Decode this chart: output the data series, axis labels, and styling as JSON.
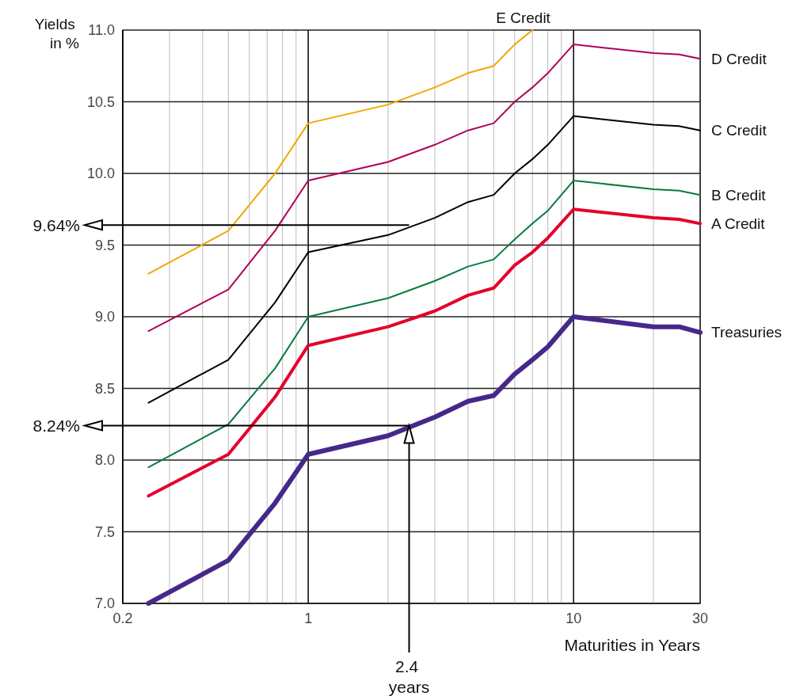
{
  "chart_data": {
    "type": "line",
    "xlabel": "Maturities in Years",
    "ylabel": "Yields in %",
    "log": "x",
    "xlim": [
      0.2,
      30
    ],
    "xticks": [
      0.2,
      {
        "value": 0.3,
        "label": null
      },
      {
        "value": 0.4,
        "label": null
      },
      {
        "value": 0.5,
        "label": null
      },
      {
        "value": 0.6,
        "label": null
      },
      {
        "value": 0.7,
        "label": null
      },
      {
        "value": 0.8,
        "label": null
      },
      {
        "value": 0.9,
        "label": null
      },
      1,
      {
        "value": 2,
        "label": null
      },
      {
        "value": 3,
        "label": null
      },
      {
        "value": 4,
        "label": null
      },
      {
        "value": 5,
        "label": null
      },
      {
        "value": 6,
        "label": null
      },
      {
        "value": 7,
        "label": null
      },
      {
        "value": 8,
        "label": null
      },
      {
        "value": 9,
        "label": null
      },
      10,
      {
        "value": 20,
        "label": null
      },
      30
    ],
    "ylim": [
      7,
      11
    ],
    "yticks": [
      {
        "value": 7,
        "label": "7.0"
      },
      {
        "value": 7.5,
        "label": "7.5"
      },
      {
        "value": 8,
        "label": "8.0"
      },
      {
        "value": 8.5,
        "label": "8.5"
      },
      {
        "value": 9,
        "label": "9.0"
      },
      {
        "value": 9.5,
        "label": "9.5"
      },
      {
        "value": 10,
        "label": "10.0"
      },
      {
        "value": 10.5,
        "label": "10.5"
      },
      {
        "value": 11,
        "label": "11.0"
      }
    ],
    "grid": true,
    "legend": false,
    "marker": "none",
    "line_style": "solid",
    "x": [
      0.25,
      0.5,
      0.75,
      1,
      2,
      3,
      4,
      5,
      6,
      7,
      8,
      10,
      20,
      25,
      30
    ],
    "series": [
      {
        "name": "E Credit",
        "color": "#f0a800",
        "x": [
          0.25,
          0.5,
          0.75,
          1,
          2,
          3,
          4,
          5,
          6,
          7
        ],
        "values": [
          9.3,
          9.6,
          10.0,
          10.35,
          10.48,
          10.6,
          10.7,
          10.75,
          10.9,
          11.0
        ]
      },
      {
        "name": "D Credit",
        "color": "#b0005a",
        "values": [
          8.9,
          9.19,
          9.6,
          9.95,
          10.08,
          10.2,
          10.3,
          10.35,
          10.5,
          10.6,
          10.7,
          10.9,
          10.84,
          10.83,
          10.8
        ]
      },
      {
        "name": "C Credit",
        "color": "#000000",
        "values": [
          8.4,
          8.7,
          9.1,
          9.45,
          9.57,
          9.69,
          9.8,
          9.85,
          10.0,
          10.1,
          10.2,
          10.4,
          10.34,
          10.33,
          10.3
        ]
      },
      {
        "name": "B Credit",
        "color": "#0a7a40",
        "values": [
          7.95,
          8.25,
          8.64,
          9.0,
          9.13,
          9.25,
          9.35,
          9.4,
          9.54,
          9.65,
          9.74,
          9.95,
          9.89,
          9.88,
          9.85
        ]
      },
      {
        "name": "A Credit",
        "color": "#e4002b",
        "values": [
          7.75,
          8.04,
          8.44,
          8.8,
          8.93,
          9.04,
          9.15,
          9.2,
          9.36,
          9.45,
          9.55,
          9.75,
          9.69,
          9.68,
          9.65
        ]
      },
      {
        "name": "Treasuries",
        "color": "#46288a",
        "values": [
          7.0,
          7.3,
          7.7,
          8.04,
          8.17,
          8.3,
          8.41,
          8.45,
          8.6,
          8.7,
          8.79,
          9.0,
          8.93,
          8.93,
          8.89
        ]
      }
    ],
    "ref_lines": [
      {
        "axis": "y",
        "value": 9.64,
        "label": "9.64%"
      },
      {
        "axis": "y",
        "value": 8.24,
        "label": "8.24%"
      },
      {
        "axis": "x",
        "value": 2.4,
        "label": "2.4 years"
      }
    ]
  }
}
